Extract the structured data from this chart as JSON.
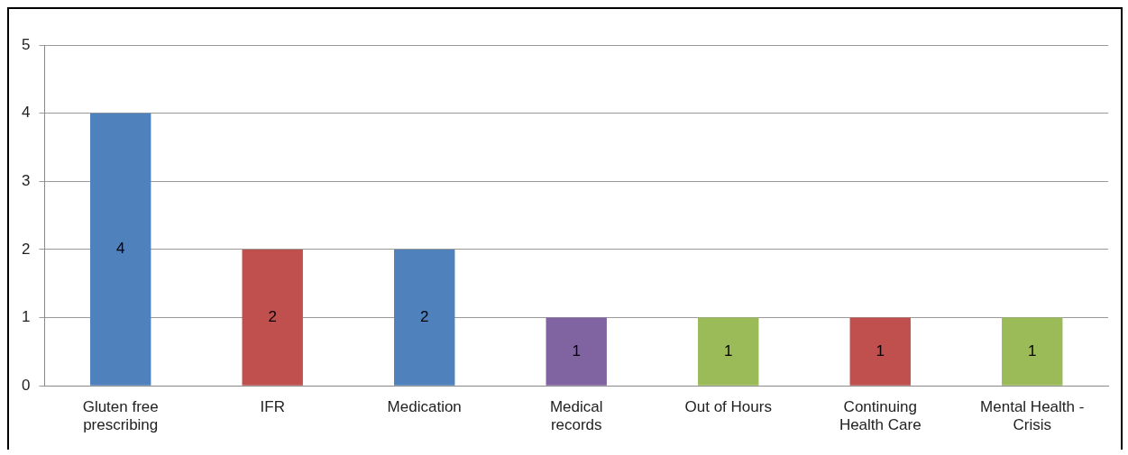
{
  "chart_data": {
    "type": "bar",
    "categories": [
      "Gluten free prescribing",
      "IFR",
      "Medication",
      "Medical records",
      "Out of Hours",
      "Continuing Health Care",
      "Mental Health - Crisis"
    ],
    "values": [
      4,
      2,
      2,
      1,
      1,
      1,
      1
    ],
    "colors": [
      "#4f81bd",
      "#c0504d",
      "#4f81bd",
      "#8064a2",
      "#9bbb59",
      "#c0504d",
      "#9bbb59"
    ],
    "ylim": [
      0,
      5
    ],
    "yticks": [
      0,
      1,
      2,
      3,
      4,
      5
    ],
    "grid": "y",
    "legend": false,
    "data_labels": true
  }
}
